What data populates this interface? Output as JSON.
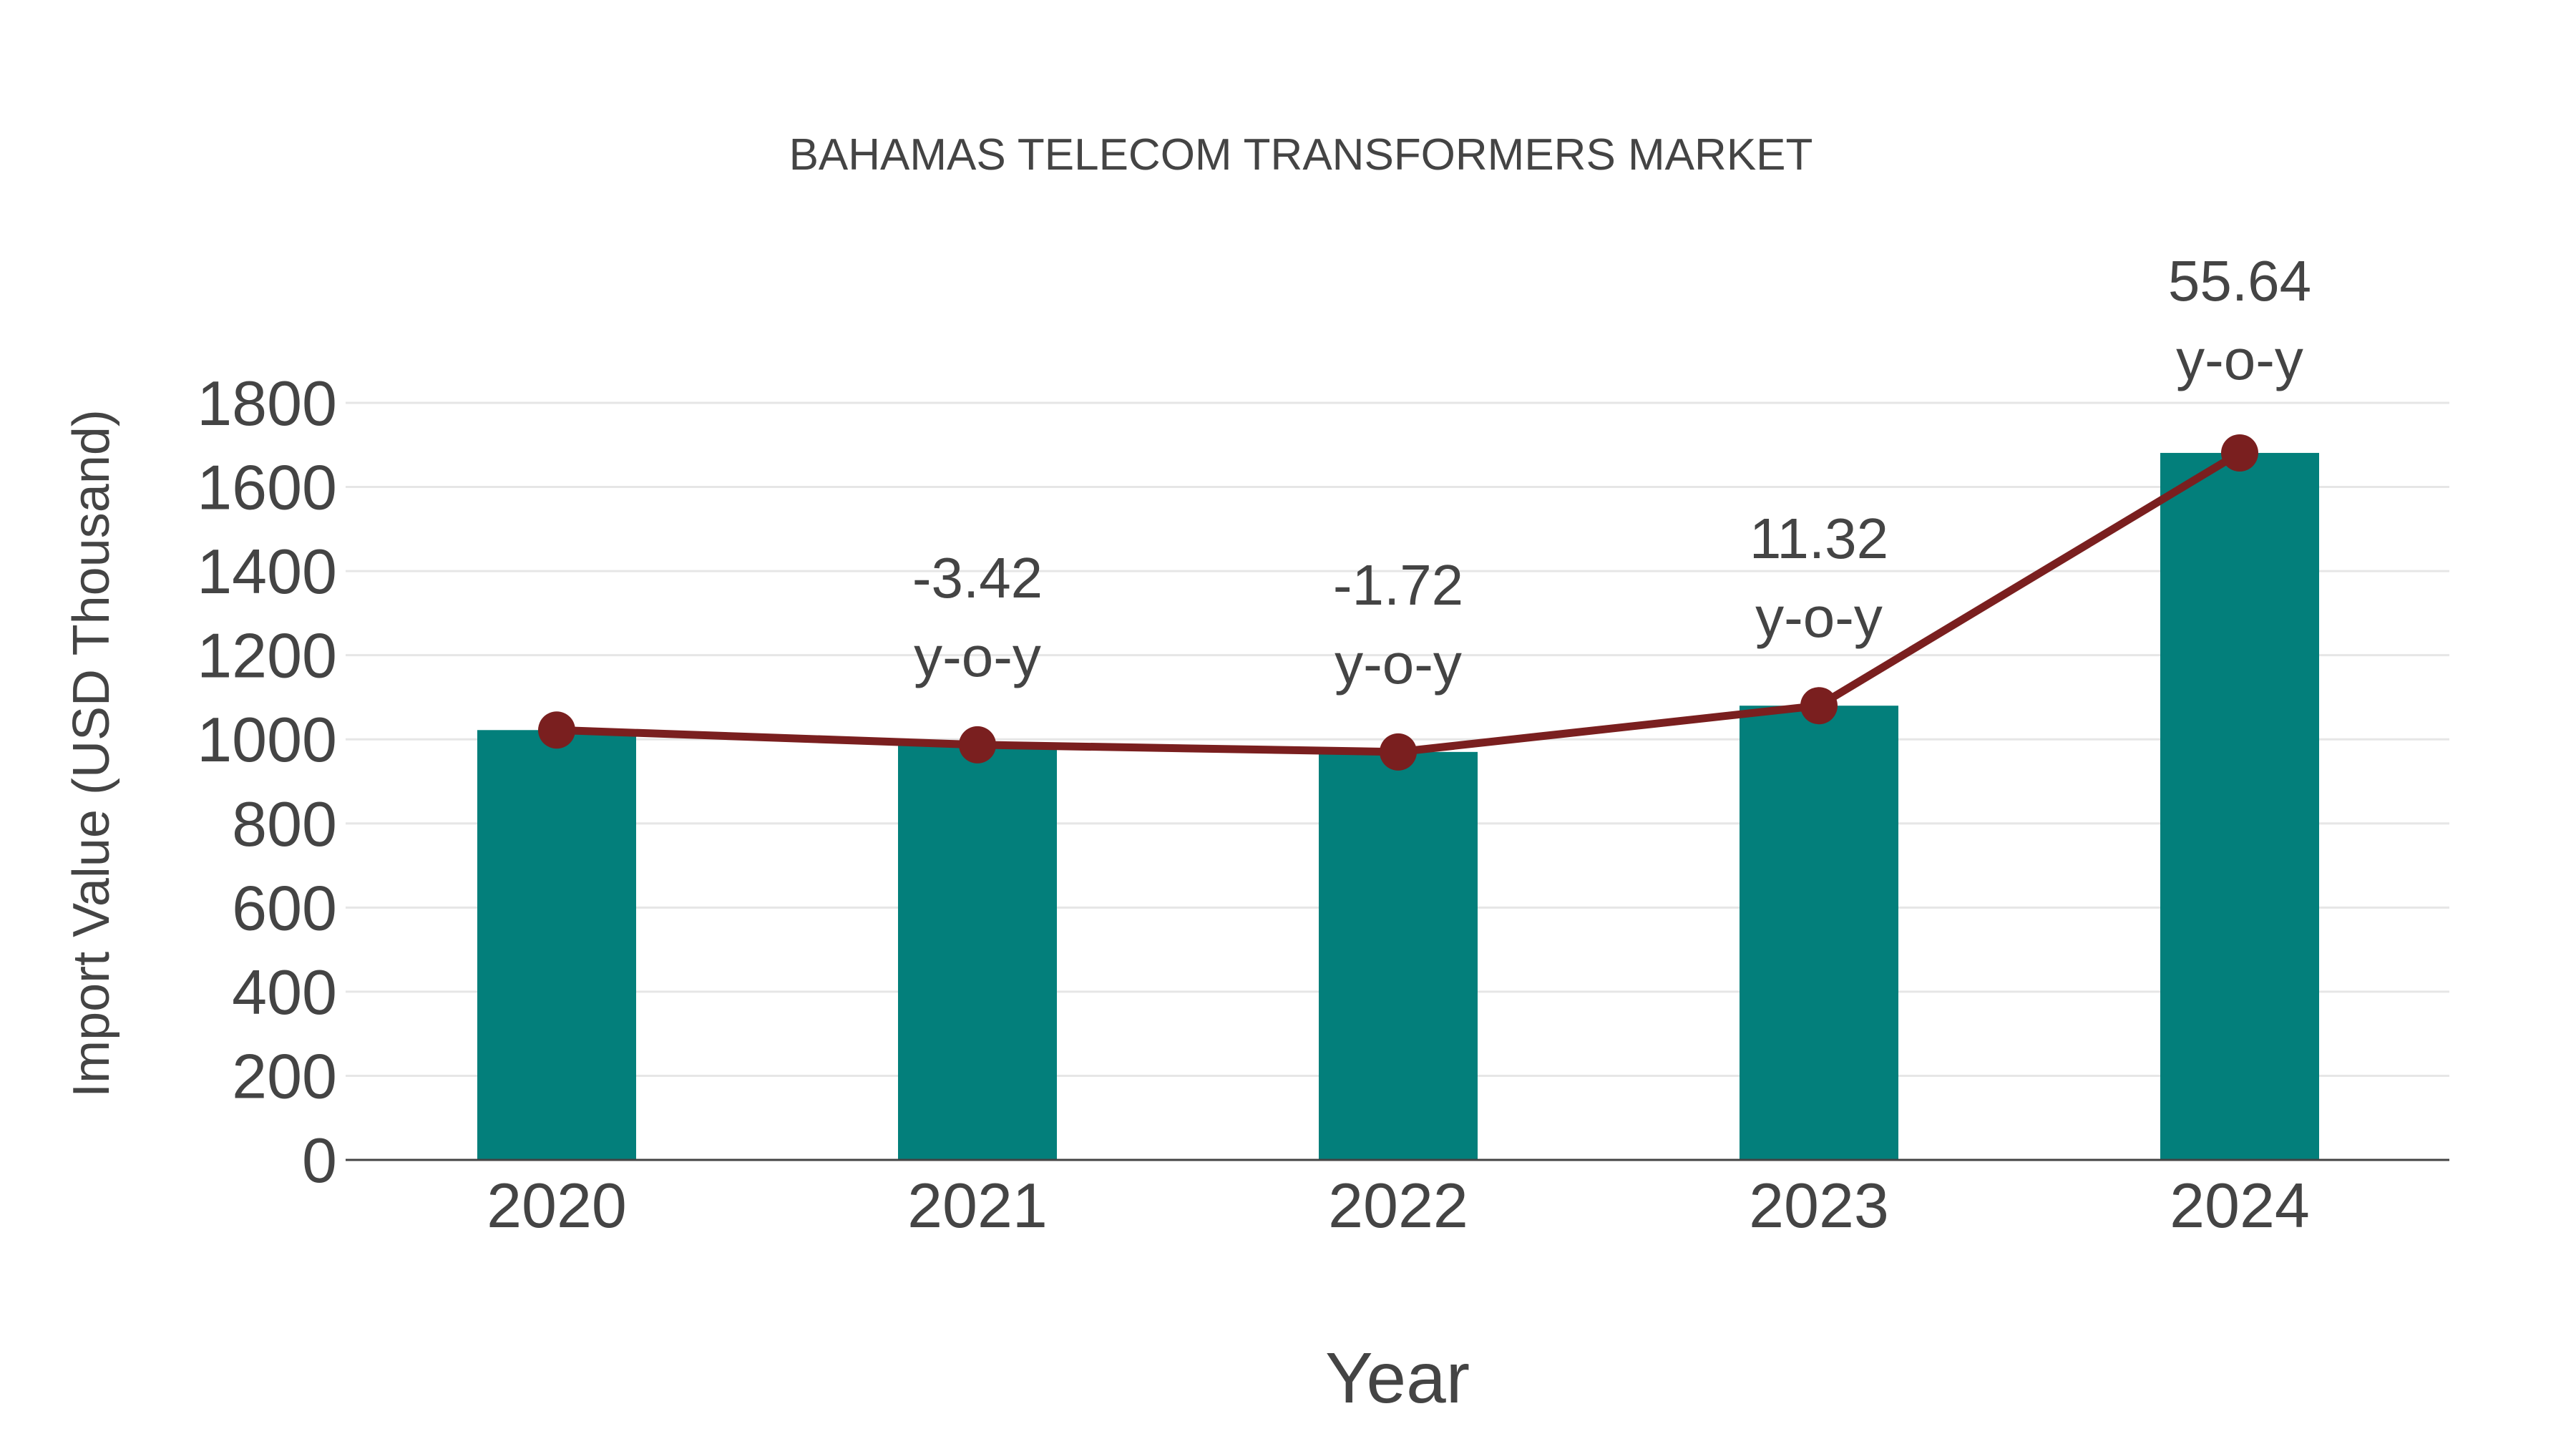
{
  "chart_data": {
    "type": "bar",
    "title": "BAHAMAS TELECOM TRANSFORMERS MARKET",
    "xlabel": "Year",
    "ylabel": "Import Value (USD Thousand)",
    "categories": [
      "2020",
      "2021",
      "2022",
      "2023",
      "2024"
    ],
    "series": [
      {
        "name": "Import Value",
        "type": "bar",
        "color": "#037f7b",
        "values": [
          1022,
          987,
          970,
          1080,
          1681
        ]
      },
      {
        "name": "Trend",
        "type": "line",
        "color": "#7a1f1f",
        "values": [
          1022,
          987,
          970,
          1080,
          1681
        ]
      }
    ],
    "annotations": [
      {
        "category": "2021",
        "value": "-3.42",
        "suffix": "y-o-y"
      },
      {
        "category": "2022",
        "value": "-1.72",
        "suffix": "y-o-y"
      },
      {
        "category": "2023",
        "value": "11.32",
        "suffix": "y-o-y"
      },
      {
        "category": "2024",
        "value": "55.64",
        "suffix": "y-o-y"
      }
    ],
    "yticks": [
      0,
      200,
      400,
      600,
      800,
      1000,
      1200,
      1400,
      1600,
      1800
    ],
    "ylim": [
      0,
      1800
    ],
    "grid": true,
    "legend": false
  }
}
